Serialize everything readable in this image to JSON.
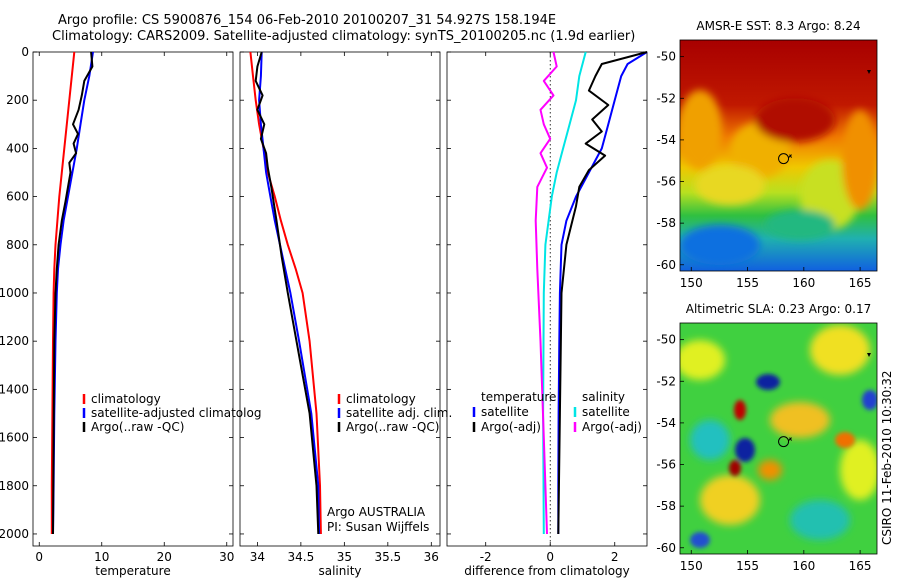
{
  "header": {
    "line1": "Argo profile: CS 5900876_154 06-Feb-2010 20100207_31 54.927S 158.194E",
    "line2": "Climatology: CARS2009. Satellite-adjusted climatology: synTS_20100205.nc (1.9d earlier)"
  },
  "side_text": "CSIRO 11-Feb-2010 10:30:32",
  "colors": {
    "red": "#ff0000",
    "blue": "#0000ff",
    "black": "#000000",
    "cyan": "#00e5e5",
    "magenta": "#ff00ff"
  },
  "chart_data": [
    {
      "type": "line",
      "xlabel": "temperature",
      "xlim": [
        -1,
        31
      ],
      "xticks": [
        0,
        10,
        20,
        30
      ],
      "ylim": [
        0,
        2050
      ],
      "yticks": [
        0,
        200,
        400,
        600,
        800,
        1000,
        1200,
        1400,
        1600,
        1800,
        2000
      ],
      "y_reversed": true,
      "legend": [
        "climatology",
        "satellite-adjusted climatolog",
        "Argo(..raw -QC)"
      ],
      "series": [
        {
          "name": "climatology",
          "color": "red",
          "x": [
            5.6,
            5.2,
            4.8,
            4.4,
            4.0,
            3.6,
            3.2,
            2.9,
            2.6,
            2.4,
            2.3,
            2.2,
            2.1,
            2.0,
            2.0
          ],
          "y": [
            0,
            100,
            200,
            300,
            400,
            500,
            600,
            700,
            800,
            900,
            1000,
            1200,
            1500,
            1800,
            2000
          ]
        },
        {
          "name": "satellite-adjusted climatology",
          "color": "blue",
          "x": [
            8.6,
            8.0,
            7.2,
            6.6,
            6.0,
            5.3,
            4.6,
            3.9,
            3.4,
            3.0,
            2.8,
            2.6,
            2.4,
            2.3,
            2.2
          ],
          "y": [
            0,
            100,
            200,
            300,
            400,
            500,
            600,
            700,
            800,
            900,
            1000,
            1200,
            1500,
            1800,
            2000
          ]
        },
        {
          "name": "Argo",
          "color": "black",
          "x": [
            8.3,
            8.5,
            7.2,
            6.8,
            6.3,
            5.4,
            6.2,
            5.5,
            5.9,
            4.8,
            5.0,
            4.6,
            4.2,
            3.6,
            3.1,
            2.8,
            2.6,
            2.4,
            2.3,
            2.2
          ],
          "y": [
            0,
            60,
            120,
            180,
            240,
            300,
            340,
            380,
            420,
            460,
            500,
            560,
            620,
            700,
            800,
            900,
            1000,
            1200,
            1600,
            2000
          ]
        }
      ]
    },
    {
      "type": "line",
      "xlabel": "salinity",
      "xlim": [
        33.8,
        36.1
      ],
      "xticks": [
        34,
        34.5,
        35,
        35.5,
        36
      ],
      "ylim": [
        0,
        2050
      ],
      "y_reversed": true,
      "legend": [
        "climatology",
        "satellite adj. clim.",
        "Argo(..raw -QC)"
      ],
      "annotation": [
        "Argo AUSTRALIA",
        "PI: Susan Wijffels"
      ],
      "series": [
        {
          "name": "climatology",
          "color": "red",
          "x": [
            33.92,
            33.95,
            33.98,
            34.02,
            34.07,
            34.12,
            34.2,
            34.27,
            34.35,
            34.44,
            34.52,
            34.6,
            34.68,
            34.72,
            34.73
          ],
          "y": [
            0,
            100,
            200,
            300,
            400,
            500,
            600,
            700,
            800,
            900,
            1000,
            1200,
            1500,
            1800,
            2000
          ]
        },
        {
          "name": "satellite adj. clim.",
          "color": "blue",
          "x": [
            34.05,
            34.04,
            34.02,
            34.04,
            34.07,
            34.1,
            34.15,
            34.2,
            34.26,
            34.32,
            34.38,
            34.48,
            34.62,
            34.7,
            34.71
          ],
          "y": [
            0,
            100,
            200,
            300,
            400,
            500,
            600,
            700,
            800,
            900,
            1000,
            1200,
            1500,
            1800,
            2000
          ]
        },
        {
          "name": "Argo",
          "color": "black",
          "x": [
            34.05,
            34.0,
            33.98,
            34.06,
            34.0,
            34.08,
            34.04,
            34.1,
            34.12,
            34.16,
            34.22,
            34.28,
            34.35,
            34.45,
            34.6,
            34.68,
            34.7
          ],
          "y": [
            0,
            60,
            120,
            180,
            240,
            300,
            360,
            420,
            480,
            560,
            700,
            850,
            1000,
            1200,
            1500,
            1800,
            2000
          ]
        }
      ]
    },
    {
      "type": "line",
      "xlabel": "difference from climatology",
      "xlim": [
        -3.2,
        3
      ],
      "xticks": [
        -2,
        0,
        2
      ],
      "ylim": [
        0,
        2050
      ],
      "y_reversed": true,
      "legend_groups": [
        {
          "title": "temperature",
          "items": [
            "satellite",
            "Argo(-adj)"
          ]
        },
        {
          "title": "salinity",
          "items": [
            "satellite",
            "Argo(-adj)"
          ]
        }
      ],
      "series": [
        {
          "name": "temperature satellite",
          "color": "blue",
          "x": [
            3.0,
            2.4,
            2.2,
            2.0,
            1.8,
            1.6,
            1.2,
            0.8,
            0.5,
            0.35,
            0.3,
            0.28,
            0.26,
            0.25,
            0.25
          ],
          "y": [
            0,
            50,
            100,
            200,
            300,
            400,
            500,
            600,
            700,
            800,
            1000,
            1200,
            1500,
            1800,
            2000
          ]
        },
        {
          "name": "temperature Argo",
          "color": "black",
          "x": [
            3.0,
            1.6,
            1.4,
            1.2,
            1.8,
            1.3,
            1.6,
            1.1,
            1.7,
            1.2,
            0.9,
            0.8,
            0.5,
            0.35,
            0.3,
            0.25
          ],
          "y": [
            0,
            50,
            100,
            160,
            220,
            280,
            330,
            380,
            430,
            490,
            560,
            640,
            800,
            1000,
            1500,
            2000
          ]
        },
        {
          "name": "salinity satellite",
          "color": "cyan",
          "x": [
            1.1,
            0.9,
            0.8,
            0.6,
            0.4,
            0.2,
            0.05,
            -0.05,
            -0.15,
            -0.2,
            -0.22,
            -0.2
          ],
          "y": [
            0,
            100,
            200,
            300,
            400,
            500,
            600,
            700,
            800,
            1000,
            1500,
            2000
          ]
        },
        {
          "name": "salinity Argo",
          "color": "magenta",
          "x": [
            0.1,
            0.2,
            -0.2,
            0.1,
            -0.3,
            -0.2,
            0.0,
            -0.3,
            -0.1,
            -0.4,
            -0.45,
            -0.4,
            -0.3,
            -0.2,
            -0.1
          ],
          "y": [
            0,
            60,
            120,
            180,
            240,
            300,
            360,
            420,
            480,
            560,
            700,
            900,
            1200,
            1600,
            2000
          ]
        }
      ]
    },
    {
      "type": "heatmap",
      "title": "AMSR-E SST: 8.3 Argo: 8.24",
      "xlim": [
        149,
        166.5
      ],
      "ylim": [
        -60.3,
        -49.2
      ],
      "xticks": [
        150,
        155,
        160,
        165
      ],
      "yticks": [
        -50,
        -52,
        -54,
        -56,
        -58,
        -60
      ],
      "marker": {
        "lon": 158.2,
        "lat": -54.9
      }
    },
    {
      "type": "heatmap",
      "title": "Altimetric SLA: 0.23 Argo: 0.17",
      "xlim": [
        149,
        166.5
      ],
      "ylim": [
        -60.3,
        -49.2
      ],
      "xticks": [
        150,
        155,
        160,
        165
      ],
      "yticks": [
        -50,
        -52,
        -54,
        -56,
        -58,
        -60
      ],
      "marker": {
        "lon": 158.2,
        "lat": -54.9
      }
    }
  ]
}
